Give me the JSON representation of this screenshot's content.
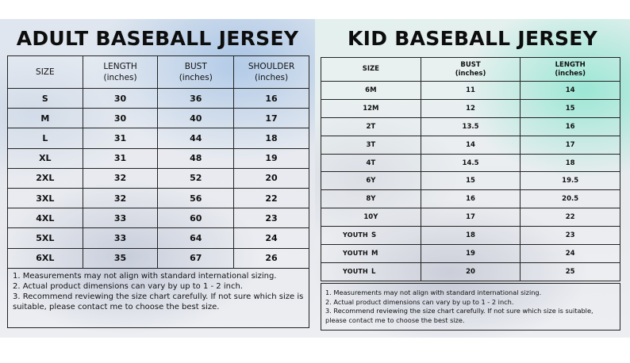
{
  "adult": {
    "title": "ADULT BASEBALL JERSEY",
    "headers": [
      {
        "line1": "SIZE",
        "line2": ""
      },
      {
        "line1": "LENGTH",
        "line2": "(inches)"
      },
      {
        "line1": "BUST",
        "line2": "(inches)"
      },
      {
        "line1": "SHOULDER",
        "line2": "(inches)"
      }
    ],
    "rows": [
      {
        "size": "S",
        "length": "30",
        "bust": "36",
        "shoulder": "16"
      },
      {
        "size": "M",
        "length": "30",
        "bust": "40",
        "shoulder": "17"
      },
      {
        "size": "L",
        "length": "31",
        "bust": "44",
        "shoulder": "18"
      },
      {
        "size": "XL",
        "length": "31",
        "bust": "48",
        "shoulder": "19"
      },
      {
        "size": "2XL",
        "length": "32",
        "bust": "52",
        "shoulder": "20"
      },
      {
        "size": "3XL",
        "length": "32",
        "bust": "56",
        "shoulder": "22"
      },
      {
        "size": "4XL",
        "length": "33",
        "bust": "60",
        "shoulder": "23"
      },
      {
        "size": "5XL",
        "length": "33",
        "bust": "64",
        "shoulder": "24"
      },
      {
        "size": "6XL",
        "length": "35",
        "bust": "67",
        "shoulder": "26"
      }
    ],
    "notes": [
      "1. Measurements may not align with standard international sizing.",
      "2. Actual product dimensions can vary by up to 1 - 2 inch.",
      "3. Recommend reviewing the size chart carefully. If not sure which size is suitable, please contact me to choose the best size."
    ]
  },
  "kid": {
    "title": "KID BASEBALL JERSEY",
    "headers": [
      {
        "line1": "SIZE",
        "line2": ""
      },
      {
        "line1": "BUST",
        "line2": "(inches)"
      },
      {
        "line1": "LENGTH",
        "line2": "(inches)"
      }
    ],
    "rows": [
      {
        "size": "6M",
        "bust": "11",
        "length": "14"
      },
      {
        "size": "12M",
        "bust": "12",
        "length": "15"
      },
      {
        "size": "2T",
        "bust": "13.5",
        "length": "16"
      },
      {
        "size": "3T",
        "bust": "14",
        "length": "17"
      },
      {
        "size": "4T",
        "bust": "14.5",
        "length": "18"
      },
      {
        "size": "6Y",
        "bust": "15",
        "length": "19.5"
      },
      {
        "size": "8Y",
        "bust": "16",
        "length": "20.5"
      },
      {
        "size": "10Y",
        "bust": "17",
        "length": "22"
      }
    ],
    "youth_rows": [
      {
        "prefix": "YOUTH",
        "size": "S",
        "bust": "18",
        "length": "23"
      },
      {
        "prefix": "YOUTH",
        "size": "M",
        "bust": "19",
        "length": "24"
      },
      {
        "prefix": "YOUTH",
        "size": "L",
        "bust": "20",
        "length": "25"
      }
    ],
    "notes": [
      "1. Measurements may not align with standard international sizing.",
      "2. Actual product dimensions can vary by up to 1 - 2 inch.",
      "3. Recommend reviewing the size chart carefully. If not sure which size is suitable, please contact me to choose the best size."
    ]
  }
}
